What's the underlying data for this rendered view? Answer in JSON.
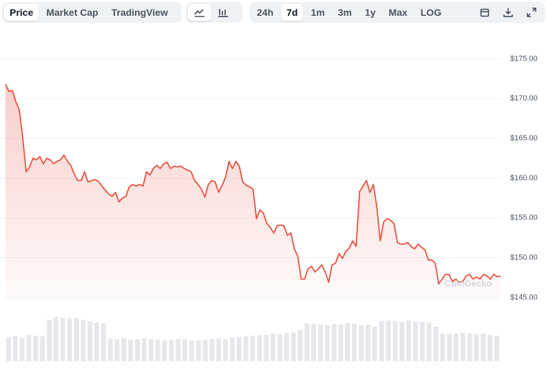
{
  "toolbar": {
    "view_tabs": [
      "Price",
      "Market Cap",
      "TradingView"
    ],
    "ranges": [
      "24h",
      "7d",
      "1m",
      "3m",
      "1y",
      "Max",
      "LOG"
    ]
  },
  "chart_data": {
    "type": "line",
    "watermark": "CoinGecko",
    "color": "#ea4e3d",
    "grid": true,
    "ylim": [
      144.6,
      177.2
    ],
    "yticks": [
      {
        "value": 145,
        "label": "$145.00"
      },
      {
        "value": 150,
        "label": "$150.00"
      },
      {
        "value": 155,
        "label": "$155.00"
      },
      {
        "value": 160,
        "label": "$160.00"
      },
      {
        "value": 165,
        "label": "$165.00"
      },
      {
        "value": 170,
        "label": "$170.00"
      },
      {
        "value": 175,
        "label": "$175.00"
      }
    ],
    "values": [
      171.8,
      170.9,
      171.0,
      169.6,
      168.6,
      165.1,
      160.8,
      161.4,
      162.5,
      162.3,
      162.7,
      161.8,
      162.5,
      162.3,
      161.8,
      162.1,
      162.3,
      162.9,
      162.1,
      161.6,
      160.5,
      159.7,
      159.7,
      160.8,
      159.5,
      159.7,
      159.8,
      159.6,
      159.0,
      158.5,
      158.0,
      157.7,
      158.2,
      157.0,
      157.5,
      157.7,
      158.9,
      159.2,
      159.0,
      159.2,
      159.0,
      160.8,
      160.4,
      161.2,
      161.6,
      161.2,
      161.8,
      162.0,
      161.2,
      161.5,
      161.4,
      161.5,
      161.2,
      161.0,
      160.8,
      159.7,
      159.2,
      158.6,
      157.6,
      159.2,
      159.7,
      159.5,
      158.2,
      159.1,
      160.1,
      162.1,
      161.2,
      162.1,
      161.5,
      159.5,
      159.1,
      158.9,
      158.6,
      154.9,
      156.0,
      155.6,
      154.3,
      153.8,
      153.1,
      154.0,
      154.1,
      154.0,
      152.8,
      153.1,
      151.1,
      150.2,
      147.3,
      147.3,
      148.6,
      148.9,
      148.2,
      148.6,
      149.1,
      148.2,
      146.9,
      149.1,
      149.3,
      150.5,
      149.9,
      150.8,
      151.2,
      152.1,
      151.4,
      158.3,
      159.0,
      159.7,
      158.2,
      159.2,
      156.4,
      152.1,
      154.5,
      154.9,
      154.7,
      154.3,
      151.9,
      151.7,
      151.7,
      151.9,
      151.4,
      151.1,
      151.7,
      151.3,
      151.0,
      149.7,
      149.7,
      149.3,
      146.7,
      147.3,
      147.9,
      147.9,
      147.0,
      147.3,
      146.9,
      147.0,
      147.7,
      147.9,
      147.3,
      147.6,
      147.3,
      147.9,
      147.7,
      147.3,
      147.9,
      147.6,
      147.7
    ],
    "volume": {
      "color": "#e5e7eb",
      "ylim": [
        0,
        70
      ],
      "values": [
        35,
        36,
        34,
        38,
        37,
        36,
        60,
        64,
        63,
        62,
        63,
        60,
        58,
        56,
        55,
        33,
        32,
        33,
        31,
        32,
        33,
        32,
        31,
        30,
        31,
        32,
        31,
        30,
        30,
        31,
        32,
        33,
        32,
        34,
        35,
        36,
        37,
        38,
        38,
        40,
        39,
        41,
        42,
        45,
        55,
        54,
        53,
        52,
        54,
        53,
        55,
        54,
        52,
        53,
        50,
        58,
        59,
        58,
        57,
        59,
        58,
        57,
        56,
        50,
        40,
        39,
        40,
        41,
        40,
        39,
        40,
        38,
        37
      ]
    }
  }
}
